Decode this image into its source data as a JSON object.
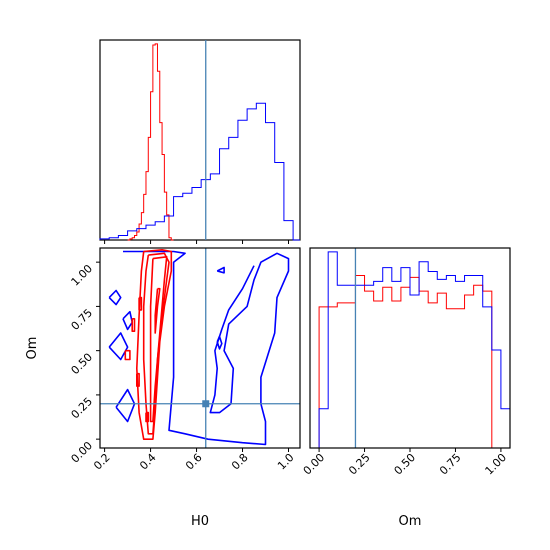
{
  "chart_data": {
    "type": "corner",
    "parameters": [
      "H0",
      "Om"
    ],
    "truth": {
      "H0": 0.64,
      "Om": 0.2
    },
    "colors": {
      "series_a": "#ff0000",
      "series_b": "#0000ff",
      "truth": "#4682b4"
    },
    "panels": {
      "hist_h0": {
        "type": "step-histogram",
        "xlim": [
          0.18,
          1.05
        ],
        "x_ticks": [
          0.2,
          0.4,
          0.6,
          0.8,
          1.0
        ],
        "series": [
          {
            "color": "red",
            "bin_edges": [
              0.3,
              0.31,
              0.32,
              0.33,
              0.34,
              0.35,
              0.36,
              0.37,
              0.38,
              0.39,
              0.4,
              0.41,
              0.42,
              0.43,
              0.44,
              0.45,
              0.46,
              0.47,
              0.48,
              0.49,
              0.5
            ],
            "counts": [
              0,
              1,
              2,
              4,
              7,
              14,
              24,
              40,
              60,
              90,
              130,
              171,
              172,
              148,
              103,
              75,
              42,
              22,
              2,
              0
            ]
          },
          {
            "color": "blue",
            "bin_edges": [
              0.18,
              0.22,
              0.26,
              0.3,
              0.34,
              0.38,
              0.42,
              0.46,
              0.5,
              0.54,
              0.58,
              0.62,
              0.66,
              0.7,
              0.74,
              0.78,
              0.82,
              0.86,
              0.9,
              0.94,
              0.98,
              1.02,
              1.05
            ],
            "counts": [
              1,
              2,
              4,
              8,
              10,
              13,
              16,
              21,
              38,
              41,
              46,
              53,
              58,
              80,
              90,
              105,
              115,
              120,
              103,
              68,
              17,
              0
            ]
          }
        ]
      },
      "hist_om": {
        "type": "step-histogram",
        "xlim": [
          -0.05,
          1.05
        ],
        "x_ticks": [
          0.0,
          0.25,
          0.5,
          0.75,
          1.0
        ],
        "x_tick_labels": [
          "0.00",
          "0.25",
          "0.50",
          "0.75",
          "1.00"
        ],
        "series": [
          {
            "color": "red",
            "bin_edges": [
              0.0,
              0.05,
              0.1,
              0.15,
              0.2,
              0.25,
              0.3,
              0.35,
              0.4,
              0.45,
              0.5,
              0.55,
              0.6,
              0.65,
              0.7,
              0.75,
              0.8,
              0.85,
              0.9,
              0.95,
              1.0
            ],
            "counts": [
              72,
              72,
              74,
              74,
              88,
              80,
              75,
              82,
              75,
              82,
              87,
              80,
              74,
              79,
              71,
              71,
              78,
              83,
              80,
              0
            ]
          },
          {
            "color": "blue",
            "bin_edges": [
              -0.05,
              0.0,
              0.05,
              0.1,
              0.15,
              0.2,
              0.25,
              0.3,
              0.35,
              0.4,
              0.45,
              0.5,
              0.55,
              0.6,
              0.65,
              0.7,
              0.75,
              0.8,
              0.85,
              0.9,
              0.95,
              1.0,
              1.05
            ],
            "counts": [
              0,
              20,
              100,
              83,
              83,
              83,
              83,
              85,
              92,
              85,
              92,
              78,
              95,
              90,
              86,
              88,
              85,
              88,
              88,
              72,
              50,
              20
            ]
          }
        ]
      },
      "scatter_2d": {
        "type": "contour",
        "xlim": [
          0.18,
          1.05
        ],
        "ylim": [
          -0.05,
          1.08
        ],
        "x_ticks": [
          0.2,
          0.4,
          0.6,
          0.8,
          1.0
        ],
        "y_ticks": [
          0.0,
          0.25,
          0.5,
          0.75,
          1.0
        ],
        "y_tick_labels": [
          "0.00",
          "0.25",
          "0.50",
          "0.75",
          "1.00"
        ],
        "contours": {
          "red": [
            [
              [
                0.37,
                1.06
              ],
              [
                0.45,
                1.07
              ],
              [
                0.49,
                1.06
              ],
              [
                0.49,
                0.95
              ],
              [
                0.46,
                0.75
              ],
              [
                0.44,
                0.55
              ],
              [
                0.43,
                0.35
              ],
              [
                0.42,
                0.15
              ],
              [
                0.41,
                0.0
              ],
              [
                0.37,
                0.0
              ],
              [
                0.35,
                0.15
              ],
              [
                0.34,
                0.4
              ],
              [
                0.35,
                0.7
              ],
              [
                0.36,
                0.95
              ],
              [
                0.37,
                1.06
              ]
            ],
            [
              [
                0.39,
                1.04
              ],
              [
                0.46,
                1.05
              ],
              [
                0.48,
                1.0
              ],
              [
                0.45,
                0.7
              ],
              [
                0.43,
                0.45
              ],
              [
                0.42,
                0.2
              ],
              [
                0.41,
                0.03
              ],
              [
                0.39,
                0.03
              ],
              [
                0.38,
                0.2
              ],
              [
                0.37,
                0.45
              ],
              [
                0.37,
                0.75
              ],
              [
                0.38,
                0.95
              ],
              [
                0.39,
                1.04
              ]
            ],
            [
              [
                0.41,
                1.02
              ],
              [
                0.47,
                1.03
              ],
              [
                0.46,
                0.9
              ],
              [
                0.44,
                0.6
              ],
              [
                0.42,
                0.3
              ],
              [
                0.41,
                0.1
              ],
              [
                0.4,
                0.1
              ],
              [
                0.4,
                0.4
              ],
              [
                0.4,
                0.75
              ],
              [
                0.41,
                1.02
              ]
            ],
            [
              [
                0.43,
                0.85
              ],
              [
                0.44,
                0.85
              ],
              [
                0.43,
                0.75
              ],
              [
                0.42,
                0.6
              ],
              [
                0.42,
                0.7
              ],
              [
                0.43,
                0.85
              ]
            ],
            [
              [
                0.32,
                0.68
              ],
              [
                0.33,
                0.68
              ],
              [
                0.33,
                0.61
              ],
              [
                0.32,
                0.61
              ],
              [
                0.32,
                0.68
              ]
            ],
            [
              [
                0.35,
                0.8
              ],
              [
                0.36,
                0.8
              ],
              [
                0.36,
                0.73
              ],
              [
                0.35,
                0.73
              ],
              [
                0.35,
                0.8
              ]
            ],
            [
              [
                0.29,
                0.5
              ],
              [
                0.31,
                0.5
              ],
              [
                0.31,
                0.45
              ],
              [
                0.29,
                0.45
              ],
              [
                0.29,
                0.5
              ]
            ],
            [
              [
                0.34,
                0.37
              ],
              [
                0.35,
                0.37
              ],
              [
                0.35,
                0.3
              ],
              [
                0.34,
                0.3
              ],
              [
                0.34,
                0.37
              ]
            ],
            [
              [
                0.38,
                0.15
              ],
              [
                0.39,
                0.15
              ],
              [
                0.39,
                0.1
              ],
              [
                0.38,
                0.1
              ],
              [
                0.38,
                0.15
              ]
            ]
          ],
          "blue": [
            [
              [
                0.28,
                1.06
              ],
              [
                0.5,
                1.06
              ],
              [
                0.55,
                1.05
              ],
              [
                0.5,
                1.0
              ],
              [
                0.5,
                0.35
              ],
              [
                0.48,
                0.05
              ],
              [
                0.55,
                0.03
              ],
              [
                0.65,
                0.0
              ],
              [
                0.8,
                -0.02
              ],
              [
                0.9,
                -0.03
              ],
              [
                0.9,
                0.1
              ],
              [
                0.88,
                0.2
              ],
              [
                0.88,
                0.35
              ],
              [
                0.94,
                0.6
              ],
              [
                0.95,
                0.8
              ],
              [
                1.0,
                0.95
              ],
              [
                1.0,
                1.02
              ],
              [
                0.95,
                1.05
              ],
              [
                0.88,
                1.0
              ],
              [
                0.85,
                0.9
              ],
              [
                0.82,
                0.75
              ],
              [
                0.74,
                0.65
              ],
              [
                0.72,
                0.5
              ],
              [
                0.76,
                0.4
              ],
              [
                0.75,
                0.2
              ],
              [
                0.7,
                0.15
              ],
              [
                0.66,
                0.15
              ],
              [
                0.68,
                0.25
              ],
              [
                0.69,
                0.4
              ],
              [
                0.68,
                0.5
              ],
              [
                0.71,
                0.62
              ],
              [
                0.74,
                0.73
              ],
              [
                0.8,
                0.85
              ],
              [
                0.85,
                0.98
              ]
            ],
            [
              [
                0.22,
                0.8
              ],
              [
                0.25,
                0.84
              ],
              [
                0.27,
                0.8
              ],
              [
                0.25,
                0.76
              ],
              [
                0.22,
                0.8
              ]
            ],
            [
              [
                0.22,
                0.52
              ],
              [
                0.27,
                0.6
              ],
              [
                0.3,
                0.52
              ],
              [
                0.27,
                0.45
              ],
              [
                0.22,
                0.52
              ]
            ],
            [
              [
                0.25,
                0.18
              ],
              [
                0.3,
                0.28
              ],
              [
                0.33,
                0.2
              ],
              [
                0.3,
                0.1
              ],
              [
                0.25,
                0.18
              ]
            ],
            [
              [
                0.28,
                0.68
              ],
              [
                0.31,
                0.72
              ],
              [
                0.32,
                0.66
              ],
              [
                0.3,
                0.62
              ],
              [
                0.28,
                0.68
              ]
            ],
            [
              [
                0.69,
                0.55
              ],
              [
                0.7,
                0.58
              ],
              [
                0.71,
                0.54
              ],
              [
                0.7,
                0.51
              ],
              [
                0.69,
                0.55
              ]
            ],
            [
              [
                0.69,
                0.95
              ],
              [
                0.72,
                0.97
              ],
              [
                0.72,
                0.94
              ],
              [
                0.69,
                0.95
              ]
            ]
          ]
        }
      }
    },
    "xlabels": [
      "H0",
      "Om"
    ],
    "ylabel": "Om"
  }
}
